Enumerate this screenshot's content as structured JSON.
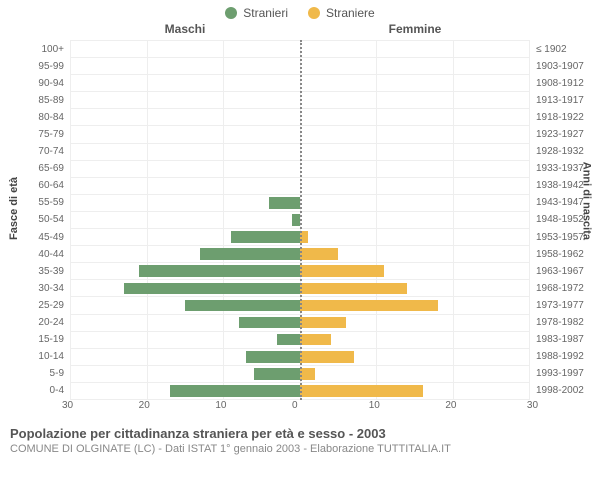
{
  "legend": {
    "male": {
      "label": "Stranieri",
      "color": "#6d9e6f"
    },
    "female": {
      "label": "Straniere",
      "color": "#f0b94a"
    }
  },
  "header": {
    "left": "Maschi",
    "right": "Femmine"
  },
  "axis": {
    "left_title": "Fasce di età",
    "right_title": "Anni di nascita",
    "xmax": 30,
    "xtick_step": 10,
    "xticks_left": [
      "30",
      "20",
      "10",
      "0"
    ],
    "xticks_right": [
      "0",
      "10",
      "20",
      "30"
    ],
    "grid_color": "#eeeeee"
  },
  "rows": [
    {
      "age": "100+",
      "birth": "≤ 1902",
      "m": 0,
      "f": 0
    },
    {
      "age": "95-99",
      "birth": "1903-1907",
      "m": 0,
      "f": 0
    },
    {
      "age": "90-94",
      "birth": "1908-1912",
      "m": 0,
      "f": 0
    },
    {
      "age": "85-89",
      "birth": "1913-1917",
      "m": 0,
      "f": 0
    },
    {
      "age": "80-84",
      "birth": "1918-1922",
      "m": 0,
      "f": 0
    },
    {
      "age": "75-79",
      "birth": "1923-1927",
      "m": 0,
      "f": 0
    },
    {
      "age": "70-74",
      "birth": "1928-1932",
      "m": 0,
      "f": 0
    },
    {
      "age": "65-69",
      "birth": "1933-1937",
      "m": 0,
      "f": 0
    },
    {
      "age": "60-64",
      "birth": "1938-1942",
      "m": 0,
      "f": 0
    },
    {
      "age": "55-59",
      "birth": "1943-1947",
      "m": 4,
      "f": 0
    },
    {
      "age": "50-54",
      "birth": "1948-1952",
      "m": 1,
      "f": 0
    },
    {
      "age": "45-49",
      "birth": "1953-1957",
      "m": 9,
      "f": 1
    },
    {
      "age": "40-44",
      "birth": "1958-1962",
      "m": 13,
      "f": 5
    },
    {
      "age": "35-39",
      "birth": "1963-1967",
      "m": 21,
      "f": 11
    },
    {
      "age": "30-34",
      "birth": "1968-1972",
      "m": 23,
      "f": 14
    },
    {
      "age": "25-29",
      "birth": "1973-1977",
      "m": 15,
      "f": 18
    },
    {
      "age": "20-24",
      "birth": "1978-1982",
      "m": 8,
      "f": 6
    },
    {
      "age": "15-19",
      "birth": "1983-1987",
      "m": 3,
      "f": 4
    },
    {
      "age": "10-14",
      "birth": "1988-1992",
      "m": 7,
      "f": 7
    },
    {
      "age": "5-9",
      "birth": "1993-1997",
      "m": 6,
      "f": 2
    },
    {
      "age": "0-4",
      "birth": "1998-2002",
      "m": 17,
      "f": 16
    }
  ],
  "footer": {
    "title": "Popolazione per cittadinanza straniera per età e sesso - 2003",
    "sub": "COMUNE DI OLGINATE (LC) - Dati ISTAT 1° gennaio 2003 - Elaborazione TUTTITALIA.IT"
  },
  "style": {
    "background_color": "#ffffff",
    "bar_height_pct": 72,
    "center_line_color": "#888888",
    "font_family": "Arial"
  }
}
